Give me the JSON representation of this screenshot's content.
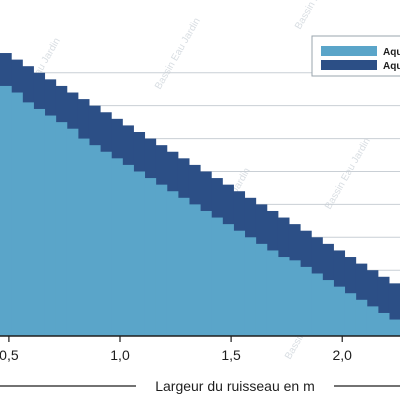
{
  "chart_data": {
    "type": "area",
    "title": "",
    "xlabel": "Largeur du ruisseau en m",
    "ylabel": "",
    "xlim": [
      0.46,
      2.26
    ],
    "ylim": [
      0,
      9.3
    ],
    "x_ticks": [
      0.5,
      1.0,
      1.5,
      2.0
    ],
    "x_tick_labels": [
      "0,5",
      "1,0",
      "1,5",
      "2,0"
    ],
    "grid": "horizontal",
    "legend_position": "top-right",
    "x": [
      0.46,
      0.51,
      0.56,
      0.61,
      0.66,
      0.71,
      0.76,
      0.81,
      0.86,
      0.91,
      0.96,
      1.01,
      1.06,
      1.11,
      1.16,
      1.21,
      1.26,
      1.31,
      1.36,
      1.41,
      1.46,
      1.51,
      1.56,
      1.61,
      1.66,
      1.71,
      1.76,
      1.81,
      1.86,
      1.91,
      1.96,
      2.01,
      2.06,
      2.11,
      2.16,
      2.21,
      2.26
    ],
    "series": [
      {
        "name": "Aqu",
        "color": "#5aa5c9",
        "values": [
          7.6,
          7.4,
          7.1,
          6.9,
          6.7,
          6.5,
          6.3,
          6.0,
          5.8,
          5.6,
          5.4,
          5.2,
          5.0,
          4.8,
          4.6,
          4.4,
          4.2,
          4.0,
          3.8,
          3.6,
          3.4,
          3.2,
          3.0,
          2.8,
          2.6,
          2.4,
          2.3,
          2.1,
          1.9,
          1.7,
          1.5,
          1.3,
          1.1,
          0.9,
          0.7,
          0.5,
          0.3
        ]
      },
      {
        "name": "Aqu",
        "color": "#2c4f86",
        "values": [
          8.6,
          8.4,
          8.2,
          8.0,
          7.8,
          7.6,
          7.4,
          7.2,
          7.0,
          6.8,
          6.6,
          6.4,
          6.2,
          6.0,
          5.8,
          5.6,
          5.4,
          5.2,
          5.0,
          4.8,
          4.6,
          4.4,
          4.2,
          4.0,
          3.8,
          3.6,
          3.4,
          3.2,
          3.0,
          2.8,
          2.6,
          2.4,
          2.2,
          2.0,
          1.8,
          1.6,
          1.4
        ]
      }
    ]
  },
  "watermark": "Bassin Eau Jardin"
}
